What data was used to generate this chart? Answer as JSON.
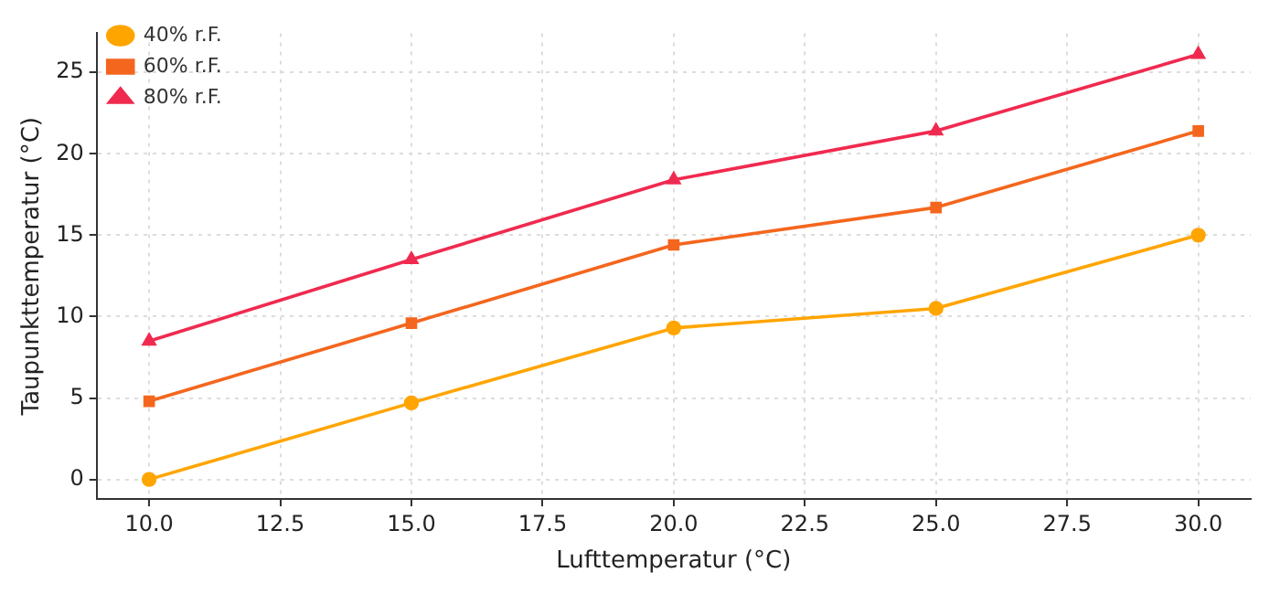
{
  "chart_data": {
    "type": "line",
    "xlabel": "Lufttemperatur (°C)",
    "ylabel": "Taupunkttemperatur (°C)",
    "x": [
      10,
      15,
      20,
      25,
      30
    ],
    "series": [
      {
        "name": "40% r.F.",
        "color": "#ffa500",
        "marker": "circle",
        "values": [
          0,
          4.7,
          9.3,
          10.5,
          15.0
        ]
      },
      {
        "name": "60% r.F.",
        "color": "#f4661e",
        "marker": "square",
        "values": [
          4.8,
          9.6,
          14.4,
          16.7,
          21.4
        ]
      },
      {
        "name": "80% r.F.",
        "color": "#f02a4f",
        "marker": "triangle",
        "values": [
          8.5,
          13.5,
          18.4,
          21.4,
          26.1
        ]
      }
    ],
    "xlim": [
      9,
      31
    ],
    "xticks": [
      {
        "value": 10,
        "label": "10.0"
      },
      {
        "value": 12.5,
        "label": "12.5"
      },
      {
        "value": 15,
        "label": "15.0"
      },
      {
        "value": 17.5,
        "label": "17.5"
      },
      {
        "value": 20,
        "label": "20.0"
      },
      {
        "value": 22.5,
        "label": "22.5"
      },
      {
        "value": 25,
        "label": "25.0"
      },
      {
        "value": 27.5,
        "label": "27.5"
      },
      {
        "value": 30,
        "label": "30.0"
      }
    ],
    "ylim": [
      -1.2,
      27.4
    ],
    "yticks": [
      0,
      5,
      10,
      15,
      20,
      25
    ],
    "grid": true,
    "legend": "top left",
    "line_style": "solid"
  }
}
